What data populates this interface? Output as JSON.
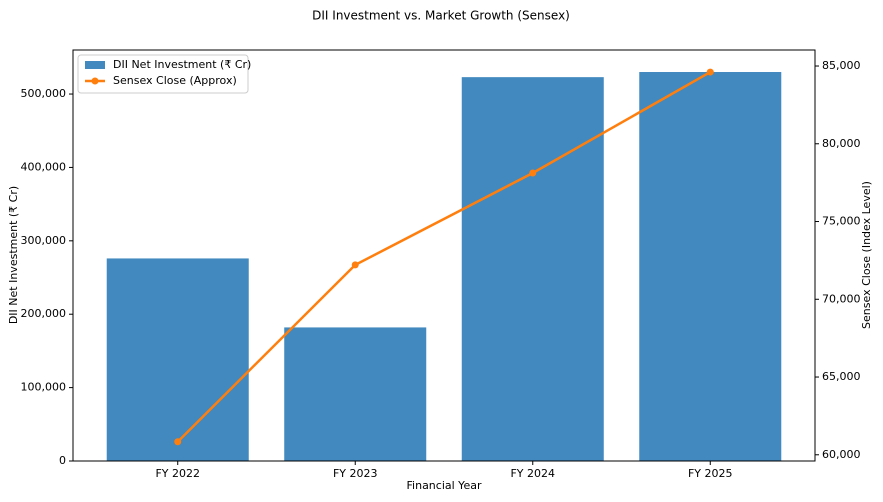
{
  "chart_data": {
    "type": "bar_line",
    "title": "DII Investment vs. Market Growth (Sensex)",
    "x_label": "Financial Year",
    "y_label": "DII Net Investment (₹ Cr)",
    "y2_label": "Sensex Close (Index Level)",
    "categories": [
      "FY 2022",
      "FY 2023",
      "FY 2024",
      "FY 2025"
    ],
    "series": [
      {
        "name": "DII Net Investment (₹ Cr)",
        "type": "bar",
        "color": "#4189bf",
        "values": [
          276000,
          182000,
          523000,
          530000
        ]
      },
      {
        "name": "Sensex Close (Approx)",
        "type": "line",
        "axis": "y2",
        "color": "#ff7f0e",
        "values": [
          60840,
          72210,
          78120,
          84610
        ]
      }
    ],
    "ylim": [
      0,
      560000
    ],
    "yticks": [
      0,
      {
        "value": 100000,
        "label": "100,000"
      },
      {
        "value": 200000,
        "label": "200,000"
      },
      {
        "value": 300000,
        "label": "300,000"
      },
      {
        "value": 400000,
        "label": "400,000"
      },
      {
        "value": 500000,
        "label": "500,000"
      }
    ],
    "y2lim": [
      59600,
      86030
    ],
    "y2ticks": [
      {
        "value": 60000,
        "label": "60,000"
      },
      {
        "value": 65000,
        "label": "65,000"
      },
      {
        "value": 70000,
        "label": "70,000"
      },
      {
        "value": 75000,
        "label": "75,000"
      },
      {
        "value": 80000,
        "label": "80,000"
      },
      {
        "value": 85000,
        "label": "85,000"
      }
    ],
    "legend": "upper left"
  }
}
